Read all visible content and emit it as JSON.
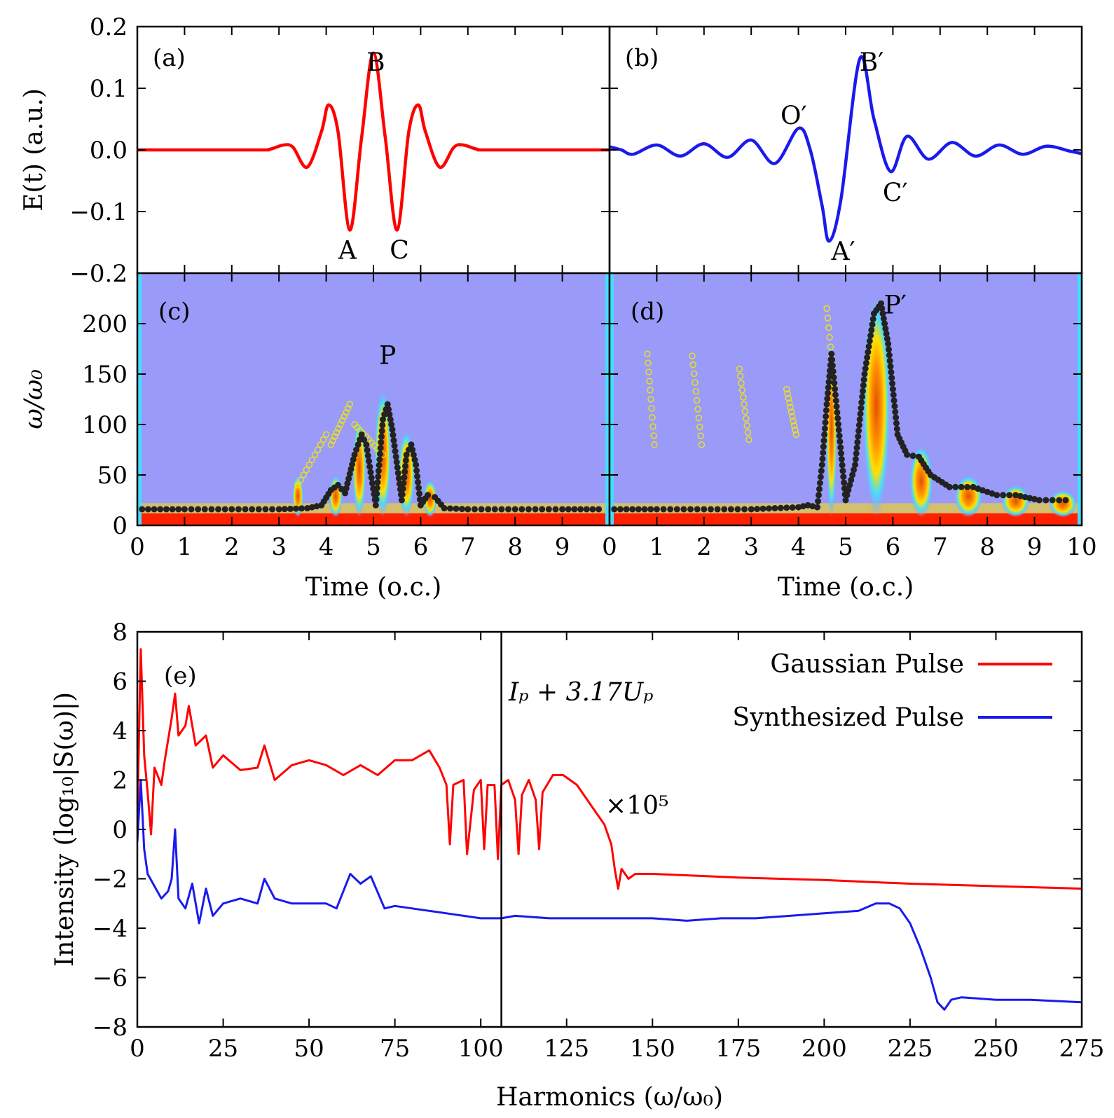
{
  "chart_data": [
    {
      "panel": "(a)",
      "type": "line",
      "title": "",
      "ylabel": "E(t) (a.u.)",
      "xlim": [
        0,
        10
      ],
      "ylim": [
        -0.2,
        0.2
      ],
      "yticks": [
        "0.2",
        "0.1",
        "0.0",
        "−0.1",
        "−0.2"
      ],
      "yticks_val": [
        0.2,
        0.1,
        0.0,
        -0.1,
        -0.2
      ],
      "color": "#ff0000",
      "series_name": "Gaussian Pulse field",
      "points": [
        [
          0,
          0
        ],
        [
          2.5,
          0
        ],
        [
          2.8,
          0.001
        ],
        [
          3.1,
          0.008
        ],
        [
          3.3,
          0.004
        ],
        [
          3.6,
          -0.028
        ],
        [
          3.9,
          0.03
        ],
        [
          4.05,
          0.073
        ],
        [
          4.25,
          0.03
        ],
        [
          4.5,
          -0.13
        ],
        [
          4.75,
          0.02
        ],
        [
          5.0,
          0.157
        ],
        [
          5.25,
          0.02
        ],
        [
          5.5,
          -0.13
        ],
        [
          5.75,
          0.03
        ],
        [
          5.95,
          0.073
        ],
        [
          6.1,
          0.03
        ],
        [
          6.4,
          -0.028
        ],
        [
          6.7,
          0.004
        ],
        [
          6.9,
          0.008
        ],
        [
          7.2,
          0.001
        ],
        [
          7.5,
          0
        ],
        [
          10,
          0
        ]
      ],
      "annotations": [
        {
          "text": "B",
          "x": 5.05,
          "y": 0.142
        },
        {
          "text": "A",
          "x": 4.45,
          "y": -0.163
        },
        {
          "text": "C",
          "x": 5.55,
          "y": -0.163
        }
      ]
    },
    {
      "panel": "(b)",
      "type": "line",
      "xlim": [
        0,
        10
      ],
      "ylim": [
        -0.2,
        0.2
      ],
      "color": "#1a1aee",
      "series_name": "Synthesized Pulse field",
      "points": [
        [
          0,
          0.005
        ],
        [
          0.25,
          0.0
        ],
        [
          0.5,
          -0.007
        ],
        [
          1.0,
          0.008
        ],
        [
          1.5,
          -0.01
        ],
        [
          2.0,
          0.01
        ],
        [
          2.5,
          -0.012
        ],
        [
          3.0,
          0.016
        ],
        [
          3.5,
          -0.022
        ],
        [
          4.0,
          0.035
        ],
        [
          4.25,
          0.0
        ],
        [
          4.5,
          -0.09
        ],
        [
          4.65,
          -0.148
        ],
        [
          4.9,
          -0.08
        ],
        [
          5.3,
          0.148
        ],
        [
          5.6,
          0.05
        ],
        [
          5.95,
          -0.035
        ],
        [
          6.3,
          0.022
        ],
        [
          6.75,
          -0.015
        ],
        [
          7.25,
          0.012
        ],
        [
          7.75,
          -0.01
        ],
        [
          8.25,
          0.008
        ],
        [
          8.75,
          -0.007
        ],
        [
          9.25,
          0.006
        ],
        [
          9.75,
          -0.002
        ],
        [
          10,
          -0.006
        ]
      ],
      "annotations": [
        {
          "text": "B′",
          "x": 5.55,
          "y": 0.142
        },
        {
          "text": "O′",
          "x": 3.9,
          "y": 0.055
        },
        {
          "text": "C′",
          "x": 6.05,
          "y": -0.07
        },
        {
          "text": "A′",
          "x": 4.95,
          "y": -0.165
        }
      ]
    },
    {
      "panel": "(c)",
      "type": "heatmap",
      "ylabel": "ω/ω₀",
      "xlabel": "Time (o.c.)",
      "xlim": [
        0,
        10
      ],
      "ylim": [
        0,
        250
      ],
      "xticks": [
        "0",
        "1",
        "2",
        "3",
        "4",
        "5",
        "6",
        "7",
        "8",
        "9"
      ],
      "xticks_val": [
        0,
        1,
        2,
        3,
        4,
        5,
        6,
        7,
        8,
        9
      ],
      "yticks": [
        "200",
        "150",
        "100",
        "50",
        "0"
      ],
      "yticks_val": [
        200,
        150,
        100,
        50,
        0
      ],
      "background": "#9a9af8",
      "peak_label": {
        "text": "P",
        "x": 5.3,
        "y": 160
      },
      "blobs": [
        {
          "x": 3.4,
          "y": 40,
          "w": 0.12
        },
        {
          "x": 4.2,
          "y": 40,
          "w": 0.15
        },
        {
          "x": 4.7,
          "y": 95,
          "w": 0.15
        },
        {
          "x": 5.2,
          "y": 125,
          "w": 0.18
        },
        {
          "x": 5.7,
          "y": 85,
          "w": 0.18
        },
        {
          "x": 6.2,
          "y": 35,
          "w": 0.15
        }
      ],
      "classical_long": [
        [
          0.1,
          16
        ],
        [
          1,
          16
        ],
        [
          2,
          16
        ],
        [
          3,
          16
        ],
        [
          3.6,
          17
        ],
        [
          3.9,
          20
        ],
        [
          4.1,
          35
        ],
        [
          4.25,
          40
        ],
        [
          4.4,
          32
        ],
        [
          4.6,
          70
        ],
        [
          4.75,
          90
        ],
        [
          4.85,
          80
        ],
        [
          5.05,
          20
        ],
        [
          5.2,
          105
        ],
        [
          5.3,
          120
        ],
        [
          5.4,
          95
        ],
        [
          5.6,
          25
        ],
        [
          5.7,
          70
        ],
        [
          5.8,
          80
        ],
        [
          5.9,
          60
        ],
        [
          6.0,
          20
        ],
        [
          6.15,
          30
        ],
        [
          6.3,
          28
        ],
        [
          6.5,
          17
        ],
        [
          7,
          16
        ],
        [
          8,
          16
        ],
        [
          9,
          16
        ],
        [
          9.9,
          16
        ]
      ],
      "classical_short": [
        [
          3.4,
          40
        ],
        [
          4.0,
          90
        ],
        [
          4.1,
          80
        ],
        [
          4.5,
          120
        ],
        [
          4.6,
          100
        ],
        [
          5.2,
          70
        ],
        [
          5.6,
          60
        ]
      ]
    },
    {
      "panel": "(d)",
      "type": "heatmap",
      "xlabel": "Time (o.c.)",
      "xlim": [
        0,
        10
      ],
      "ylim": [
        0,
        250
      ],
      "xticks": [
        "0",
        "1",
        "2",
        "3",
        "4",
        "5",
        "6",
        "7",
        "8",
        "9",
        "10"
      ],
      "xticks_val": [
        0,
        1,
        2,
        3,
        4,
        5,
        6,
        7,
        8,
        9,
        10
      ],
      "background": "#9a9af8",
      "peak_label": {
        "text": "P′",
        "x": 6.05,
        "y": 210
      },
      "blobs": [
        {
          "x": 4.7,
          "y": 175,
          "w": 0.12
        },
        {
          "x": 5.65,
          "y": 220,
          "w": 0.3
        },
        {
          "x": 6.6,
          "y": 70,
          "w": 0.25
        },
        {
          "x": 7.6,
          "y": 40,
          "w": 0.3
        },
        {
          "x": 8.6,
          "y": 30,
          "w": 0.3
        },
        {
          "x": 9.6,
          "y": 25,
          "w": 0.3
        }
      ],
      "classical_long": [
        [
          0.1,
          16
        ],
        [
          1,
          16
        ],
        [
          2,
          16
        ],
        [
          3,
          16
        ],
        [
          4,
          18
        ],
        [
          4.2,
          20
        ],
        [
          4.4,
          18
        ],
        [
          4.5,
          60
        ],
        [
          4.6,
          120
        ],
        [
          4.7,
          170
        ],
        [
          5.0,
          25
        ],
        [
          5.2,
          60
        ],
        [
          5.4,
          150
        ],
        [
          5.6,
          210
        ],
        [
          5.75,
          220
        ],
        [
          5.9,
          180
        ],
        [
          6.1,
          90
        ],
        [
          6.3,
          70
        ],
        [
          6.55,
          68
        ],
        [
          6.8,
          50
        ],
        [
          7.2,
          38
        ],
        [
          7.7,
          38
        ],
        [
          8.2,
          30
        ],
        [
          8.6,
          30
        ],
        [
          9.1,
          25
        ],
        [
          9.8,
          25
        ]
      ],
      "classical_short": [
        [
          0.8,
          170
        ],
        [
          0.95,
          80
        ],
        [
          1.75,
          168
        ],
        [
          1.95,
          80
        ],
        [
          2.75,
          155
        ],
        [
          2.95,
          85
        ],
        [
          3.75,
          135
        ],
        [
          3.95,
          90
        ],
        [
          4.6,
          215
        ],
        [
          4.8,
          120
        ]
      ]
    },
    {
      "panel": "(e)",
      "type": "line",
      "xlabel": "Harmonics (ω/ω₀)",
      "ylabel": "Intensity (log₁₀|S(ω)|)",
      "xlim": [
        0,
        275
      ],
      "ylim": [
        -8,
        8
      ],
      "xticks": [
        "0",
        "25",
        "50",
        "75",
        "100",
        "125",
        "150",
        "175",
        "200",
        "225",
        "250",
        "275"
      ],
      "xticks_val": [
        0,
        25,
        50,
        75,
        100,
        125,
        150,
        175,
        200,
        225,
        250,
        275
      ],
      "yticks": [
        "8",
        "6",
        "4",
        "2",
        "0",
        "−2",
        "−4",
        "−6",
        "−8"
      ],
      "yticks_val": [
        8,
        6,
        4,
        2,
        0,
        -2,
        -4,
        -6,
        -8
      ],
      "cutoff": {
        "x": 106,
        "label": "Iₚ + 3.17Uₚ"
      },
      "scale_note": "×10⁵",
      "legend": [
        "Gaussian Pulse",
        "Synthesized Pulse"
      ],
      "series": [
        {
          "name": "Gaussian Pulse",
          "color": "#ff0000",
          "values": [
            [
              0,
              0.5
            ],
            [
              1,
              7.3
            ],
            [
              2,
              3.0
            ],
            [
              3,
              1.5
            ],
            [
              4,
              -0.2
            ],
            [
              5,
              2.5
            ],
            [
              7,
              1.8
            ],
            [
              8,
              2.8
            ],
            [
              10,
              4.5
            ],
            [
              11,
              5.5
            ],
            [
              12,
              3.8
            ],
            [
              14,
              4.2
            ],
            [
              15,
              5.0
            ],
            [
              17,
              3.4
            ],
            [
              20,
              3.8
            ],
            [
              22,
              2.5
            ],
            [
              25,
              3.0
            ],
            [
              30,
              2.4
            ],
            [
              35,
              2.5
            ],
            [
              37,
              3.4
            ],
            [
              40,
              2.0
            ],
            [
              45,
              2.6
            ],
            [
              50,
              2.8
            ],
            [
              55,
              2.6
            ],
            [
              60,
              2.2
            ],
            [
              65,
              2.6
            ],
            [
              70,
              2.2
            ],
            [
              75,
              2.8
            ],
            [
              80,
              2.8
            ],
            [
              85,
              3.2
            ],
            [
              88,
              2.5
            ],
            [
              90,
              1.8
            ],
            [
              91,
              -0.6
            ],
            [
              92,
              1.8
            ],
            [
              95,
              2.0
            ],
            [
              96,
              -1.0
            ],
            [
              98,
              1.6
            ],
            [
              100,
              2.0
            ],
            [
              101,
              -0.8
            ],
            [
              102,
              1.8
            ],
            [
              104,
              1.8
            ],
            [
              105,
              -1.2
            ],
            [
              106,
              1.8
            ],
            [
              108,
              2.0
            ],
            [
              110,
              1.2
            ],
            [
              111,
              -1.0
            ],
            [
              112,
              1.4
            ],
            [
              114,
              2.0
            ],
            [
              116,
              1.2
            ],
            [
              117,
              -0.8
            ],
            [
              118,
              1.5
            ],
            [
              121,
              2.2
            ],
            [
              124,
              2.2
            ],
            [
              128,
              1.8
            ],
            [
              132,
              1.0
            ],
            [
              136,
              0.2
            ],
            [
              138,
              -0.6
            ],
            [
              139,
              -1.6
            ],
            [
              140,
              -2.4
            ],
            [
              141,
              -1.6
            ],
            [
              143,
              -2.0
            ],
            [
              145,
              -1.8
            ],
            [
              150,
              -1.8
            ],
            [
              175,
              -1.95
            ],
            [
              200,
              -2.05
            ],
            [
              225,
              -2.2
            ],
            [
              250,
              -2.3
            ],
            [
              275,
              -2.4
            ]
          ]
        },
        {
          "name": "Synthesized Pulse",
          "color": "#1a1aee",
          "values": [
            [
              0,
              -0.5
            ],
            [
              1,
              2.0
            ],
            [
              2,
              -0.8
            ],
            [
              3,
              -1.8
            ],
            [
              5,
              -2.3
            ],
            [
              7,
              -2.8
            ],
            [
              9,
              -2.5
            ],
            [
              10,
              -2.0
            ],
            [
              11,
              0.0
            ],
            [
              12,
              -2.8
            ],
            [
              14,
              -3.2
            ],
            [
              16,
              -2.2
            ],
            [
              18,
              -3.8
            ],
            [
              20,
              -2.4
            ],
            [
              22,
              -3.5
            ],
            [
              25,
              -3.0
            ],
            [
              30,
              -2.8
            ],
            [
              35,
              -3.0
            ],
            [
              37,
              -2.0
            ],
            [
              40,
              -2.8
            ],
            [
              45,
              -3.0
            ],
            [
              50,
              -3.0
            ],
            [
              55,
              -3.0
            ],
            [
              58,
              -3.2
            ],
            [
              62,
              -1.8
            ],
            [
              65,
              -2.2
            ],
            [
              68,
              -1.9
            ],
            [
              72,
              -3.2
            ],
            [
              75,
              -3.1
            ],
            [
              80,
              -3.2
            ],
            [
              90,
              -3.4
            ],
            [
              100,
              -3.6
            ],
            [
              106,
              -3.6
            ],
            [
              110,
              -3.5
            ],
            [
              120,
              -3.6
            ],
            [
              130,
              -3.6
            ],
            [
              140,
              -3.6
            ],
            [
              150,
              -3.6
            ],
            [
              160,
              -3.7
            ],
            [
              170,
              -3.6
            ],
            [
              180,
              -3.6
            ],
            [
              190,
              -3.5
            ],
            [
              200,
              -3.4
            ],
            [
              210,
              -3.3
            ],
            [
              215,
              -3.0
            ],
            [
              219,
              -3.0
            ],
            [
              222,
              -3.2
            ],
            [
              225,
              -3.8
            ],
            [
              228,
              -4.8
            ],
            [
              231,
              -6.0
            ],
            [
              233,
              -7.0
            ],
            [
              235,
              -7.3
            ],
            [
              237,
              -6.9
            ],
            [
              240,
              -6.8
            ],
            [
              250,
              -6.9
            ],
            [
              260,
              -6.9
            ],
            [
              275,
              -7.0
            ]
          ]
        }
      ]
    }
  ]
}
